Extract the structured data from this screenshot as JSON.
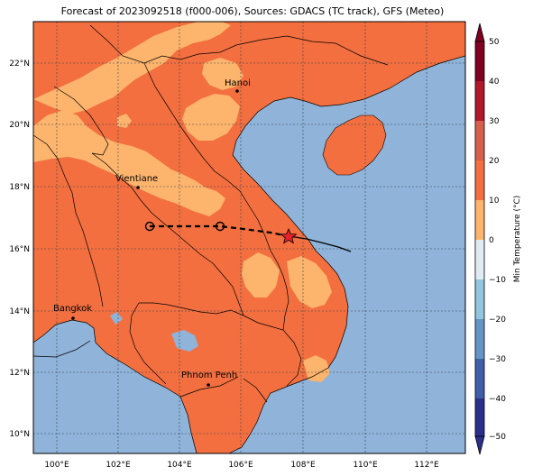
{
  "title": "Forecast of 2023092518 (f000-006), Sources: GDACS (TC track), GFS (Meteo)",
  "colors": {
    "sea": "#8fb3d9",
    "warm": "#f36f3f",
    "mild": "#fdb46d",
    "track": "#000000",
    "star": "#e8202a"
  },
  "longitude_ticks": [
    "100°E",
    "102°E",
    "104°E",
    "106°E",
    "108°E",
    "110°E",
    "112°E"
  ],
  "latitude_ticks": [
    "22°N",
    "20°N",
    "18°N",
    "16°N",
    "14°N",
    "12°N",
    "10°N"
  ],
  "cities": [
    {
      "name": "Hanoi"
    },
    {
      "name": "Vientiane"
    },
    {
      "name": "Bangkok"
    },
    {
      "name": "Phnom Penh"
    }
  ],
  "colorbar": {
    "label": "Min Temperature (°C)",
    "ticks": [
      "50",
      "40",
      "30",
      "20",
      "10",
      "0",
      "−10",
      "−20",
      "−30",
      "−40",
      "−50"
    ],
    "colors": [
      "#7f0020",
      "#b2182b",
      "#d6604d",
      "#f36f3f",
      "#fdb46d",
      "#fde0c4",
      "#e0ecf4",
      "#92c5de",
      "#6495c6",
      "#3f5fa8",
      "#2b2f8c"
    ]
  },
  "track": {
    "points": [
      {
        "lon": 103.0,
        "lat": 16.7
      },
      {
        "lon": 105.3,
        "lat": 16.7
      },
      {
        "lon": 107.5,
        "lat": 16.4
      },
      {
        "lon": 109.5,
        "lat": 15.9
      }
    ]
  }
}
